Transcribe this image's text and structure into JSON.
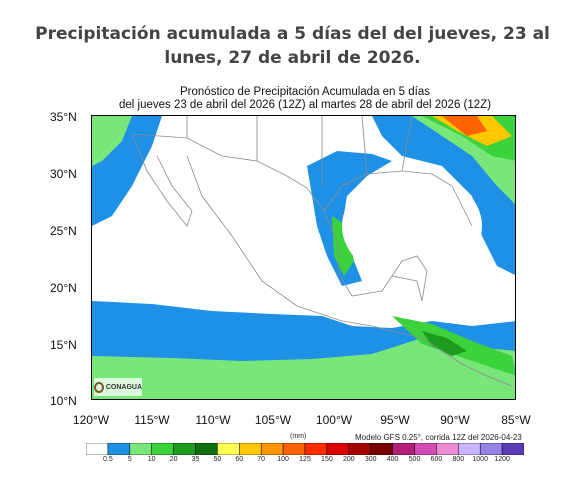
{
  "headline": "Precipitación acumulada a 5 días del del jueves, 23 al lunes, 27 de abril de 2026.",
  "map_title_line1": "Pronóstico de Precipitación Acumulada en 5 días",
  "map_title_line2": "del jueves 23 de abril del 2026 (12Z) al martes  28 de abril del 2026 (12Z)",
  "lat_labels": [
    "35°N",
    "30°N",
    "25°N",
    "20°N",
    "15°N",
    "10°N"
  ],
  "lon_labels": [
    "120°W",
    "115°W",
    "110°W",
    "105°W",
    "100°W",
    "95°W",
    "90°W",
    "85°W"
  ],
  "logo_text": "CONAGUA",
  "units": "(mm)",
  "model_note": "Modelo GFS 0.25°, corrida 12Z del 2026-04-23",
  "colorbar": {
    "thresholds": [
      "0.5",
      "5",
      "10",
      "20",
      "35",
      "50",
      "60",
      "70",
      "100",
      "125",
      "150",
      "200",
      "300",
      "400",
      "500",
      "600",
      "800",
      "1000",
      "1200"
    ],
    "colors": [
      "#ffffff",
      "#1e90e6",
      "#78e678",
      "#3cd23c",
      "#1e9b1e",
      "#0f6e0f",
      "#ffff50",
      "#ffc800",
      "#ff9600",
      "#ff6400",
      "#ff2d00",
      "#dc0000",
      "#a50000",
      "#780000",
      "#b41e78",
      "#d24bb4",
      "#eb8cd2",
      "#c8b4ff",
      "#9682e6",
      "#5a3cb4"
    ]
  },
  "colors": {
    "land": "#ffffff",
    "border": "#8c8c8c",
    "rain_light": "#1e90e6",
    "rain_med": "#78e678",
    "rain_heavy": "#1e9b1e"
  }
}
